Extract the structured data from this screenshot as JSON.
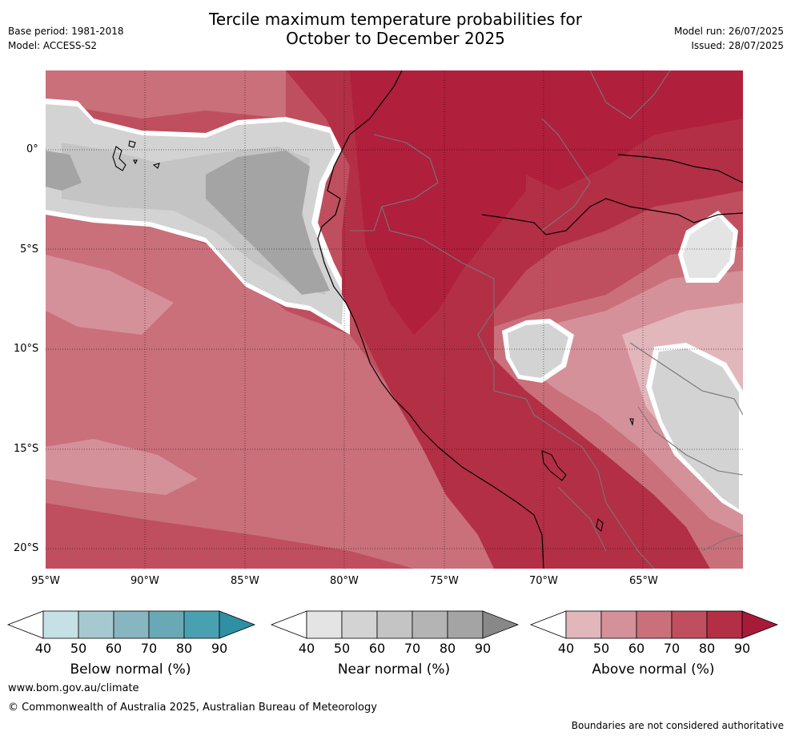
{
  "header": {
    "title_line1": "Tercile maximum temperature probabilities for",
    "title_line2": "October to December 2025",
    "base_period": "Base period: 1981-2018",
    "model": "Model: ACCESS-S2",
    "model_run": "Model run: 26/07/2025",
    "issued": "Issued: 28/07/2025"
  },
  "map": {
    "lat_ticks": [
      "0°",
      "5°S",
      "10°S",
      "15°S",
      "20°S"
    ],
    "lon_ticks": [
      "95°W",
      "90°W",
      "85°W",
      "80°W",
      "75°W",
      "70°W",
      "65°W"
    ]
  },
  "colorbars": {
    "ticks": [
      "40",
      "50",
      "60",
      "70",
      "80",
      "90"
    ],
    "below": {
      "label": "Below normal (%)",
      "colors": [
        "#ffffff",
        "#c6e1e6",
        "#a6c9cf",
        "#87b5c0",
        "#68a9b5",
        "#48a0b0",
        "#2f8fa3"
      ]
    },
    "near": {
      "label": "Near normal (%)",
      "colors": [
        "#ffffff",
        "#e4e4e4",
        "#d3d3d3",
        "#c4c4c4",
        "#b4b4b4",
        "#a4a4a4",
        "#888888"
      ]
    },
    "above": {
      "label": "Above normal (%)",
      "colors": [
        "#ffffff",
        "#e1b7bc",
        "#d5919a",
        "#c9707b",
        "#bf4f5e",
        "#b32f45",
        "#a81b38"
      ]
    }
  },
  "footer": {
    "website": "www.bom.gov.au/climate",
    "copyright": "© Commonwealth of Australia 2025, Australian Bureau of Meteorology",
    "disclaimer": "Boundaries are not considered authoritative"
  }
}
